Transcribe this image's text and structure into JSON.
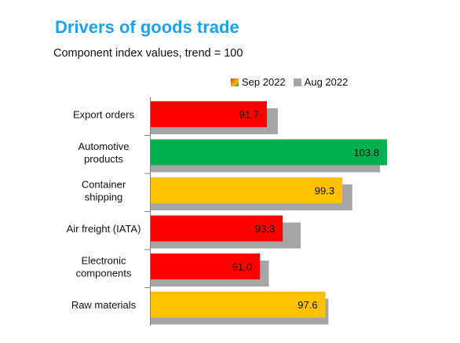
{
  "title": "Drivers of goods trade",
  "subtitle": "Component index values, trend = 100",
  "legend": {
    "current": "Sep 2022",
    "previous": "Aug 2022"
  },
  "colors": {
    "red": "#ff0000",
    "green": "#00b050",
    "amber": "#ffc000",
    "grey": "#a6a6a6",
    "title": "#1aa3e8"
  },
  "chart_data": {
    "type": "bar",
    "orientation": "horizontal",
    "title": "Drivers of goods trade",
    "subtitle": "Component index values, trend = 100",
    "categories": [
      [
        "Export orders"
      ],
      [
        "Automotive",
        "products"
      ],
      [
        "Container",
        "shipping"
      ],
      [
        "Air freight (IATA)"
      ],
      [
        "Electronic",
        "components"
      ],
      [
        "Raw materials"
      ]
    ],
    "series": [
      {
        "name": "Sep 2022",
        "values": [
          91.7,
          103.8,
          99.3,
          93.3,
          91.0,
          97.6
        ],
        "labels": [
          "91.7",
          "103.8",
          "99.3",
          "93.3",
          "91.0",
          "97.6"
        ],
        "colors": [
          "#ff0000",
          "#00b050",
          "#ffc000",
          "#ff0000",
          "#ff0000",
          "#ffc000"
        ]
      },
      {
        "name": "Aug 2022",
        "values": [
          92.8,
          103.1,
          100.3,
          95.1,
          91.9,
          97.9
        ]
      }
    ],
    "xlim": [
      80,
      106
    ],
    "grid": false,
    "legend_position": "top-right"
  }
}
